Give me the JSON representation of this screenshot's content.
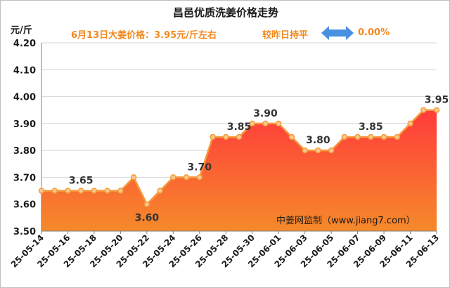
{
  "header": {
    "title": "昌邑优质洗姜价格走势",
    "unit": "元/斤",
    "headline": "6月13日大姜价格：3.95元/斤左右",
    "trend": "较昨日持平",
    "change": "0.00%",
    "source": "中姜网监制（www.jiang7.com）"
  },
  "colors": {
    "area_top": "#ff3b3b",
    "area_bottom": "#f58a2a",
    "line": "#f59a3c",
    "marker": "#f7c98d",
    "arrow": "#4a90e2",
    "accent_text": "#f2891f"
  },
  "chart_data": {
    "type": "area",
    "title": "昌邑优质洗姜价格走势",
    "ylabel": "元/斤",
    "ylim": [
      3.5,
      4.2
    ],
    "yticks": [
      "3.50",
      "3.60",
      "3.70",
      "3.80",
      "3.90",
      "4.00",
      "4.10",
      "4.20"
    ],
    "grid": "horizontal",
    "x": [
      "25-05-14",
      "25-05-15",
      "25-05-16",
      "25-05-17",
      "25-05-18",
      "25-05-19",
      "25-05-20",
      "25-05-21",
      "25-05-22",
      "25-05-23",
      "25-05-24",
      "25-05-25",
      "25-05-26",
      "25-05-27",
      "25-05-28",
      "25-05-29",
      "25-05-30",
      "25-05-31",
      "25-06-01",
      "25-06-02",
      "25-06-03",
      "25-06-04",
      "25-06-05",
      "25-06-06",
      "25-06-07",
      "25-06-08",
      "25-06-09",
      "25-06-10",
      "25-06-11",
      "25-06-12",
      "25-06-13"
    ],
    "x_tick_labels": [
      "25-05-14",
      "25-05-16",
      "25-05-18",
      "25-05-20",
      "25-05-22",
      "25-05-24",
      "25-05-26",
      "25-05-28",
      "25-05-30",
      "25-06-01",
      "25-06-03",
      "25-06-05",
      "25-06-07",
      "25-06-09",
      "25-06-11",
      "25-06-13"
    ],
    "series": [
      {
        "values": [
          3.65,
          3.65,
          3.65,
          3.65,
          3.65,
          3.65,
          3.65,
          3.7,
          3.6,
          3.65,
          3.7,
          3.7,
          3.7,
          3.85,
          3.85,
          3.85,
          3.9,
          3.9,
          3.9,
          3.85,
          3.8,
          3.8,
          3.8,
          3.85,
          3.85,
          3.85,
          3.85,
          3.85,
          3.9,
          3.95,
          3.95
        ]
      }
    ],
    "data_labels": [
      {
        "index": 3,
        "text": "3.65",
        "position": "above"
      },
      {
        "index": 8,
        "text": "3.60",
        "position": "below"
      },
      {
        "index": 12,
        "text": "3.70",
        "position": "above"
      },
      {
        "index": 15,
        "text": "3.85",
        "position": "above"
      },
      {
        "index": 17,
        "text": "3.90",
        "position": "above"
      },
      {
        "index": 21,
        "text": "3.80",
        "position": "above"
      },
      {
        "index": 25,
        "text": "3.85",
        "position": "above"
      },
      {
        "index": 30,
        "text": "3.95",
        "position": "above"
      }
    ]
  }
}
